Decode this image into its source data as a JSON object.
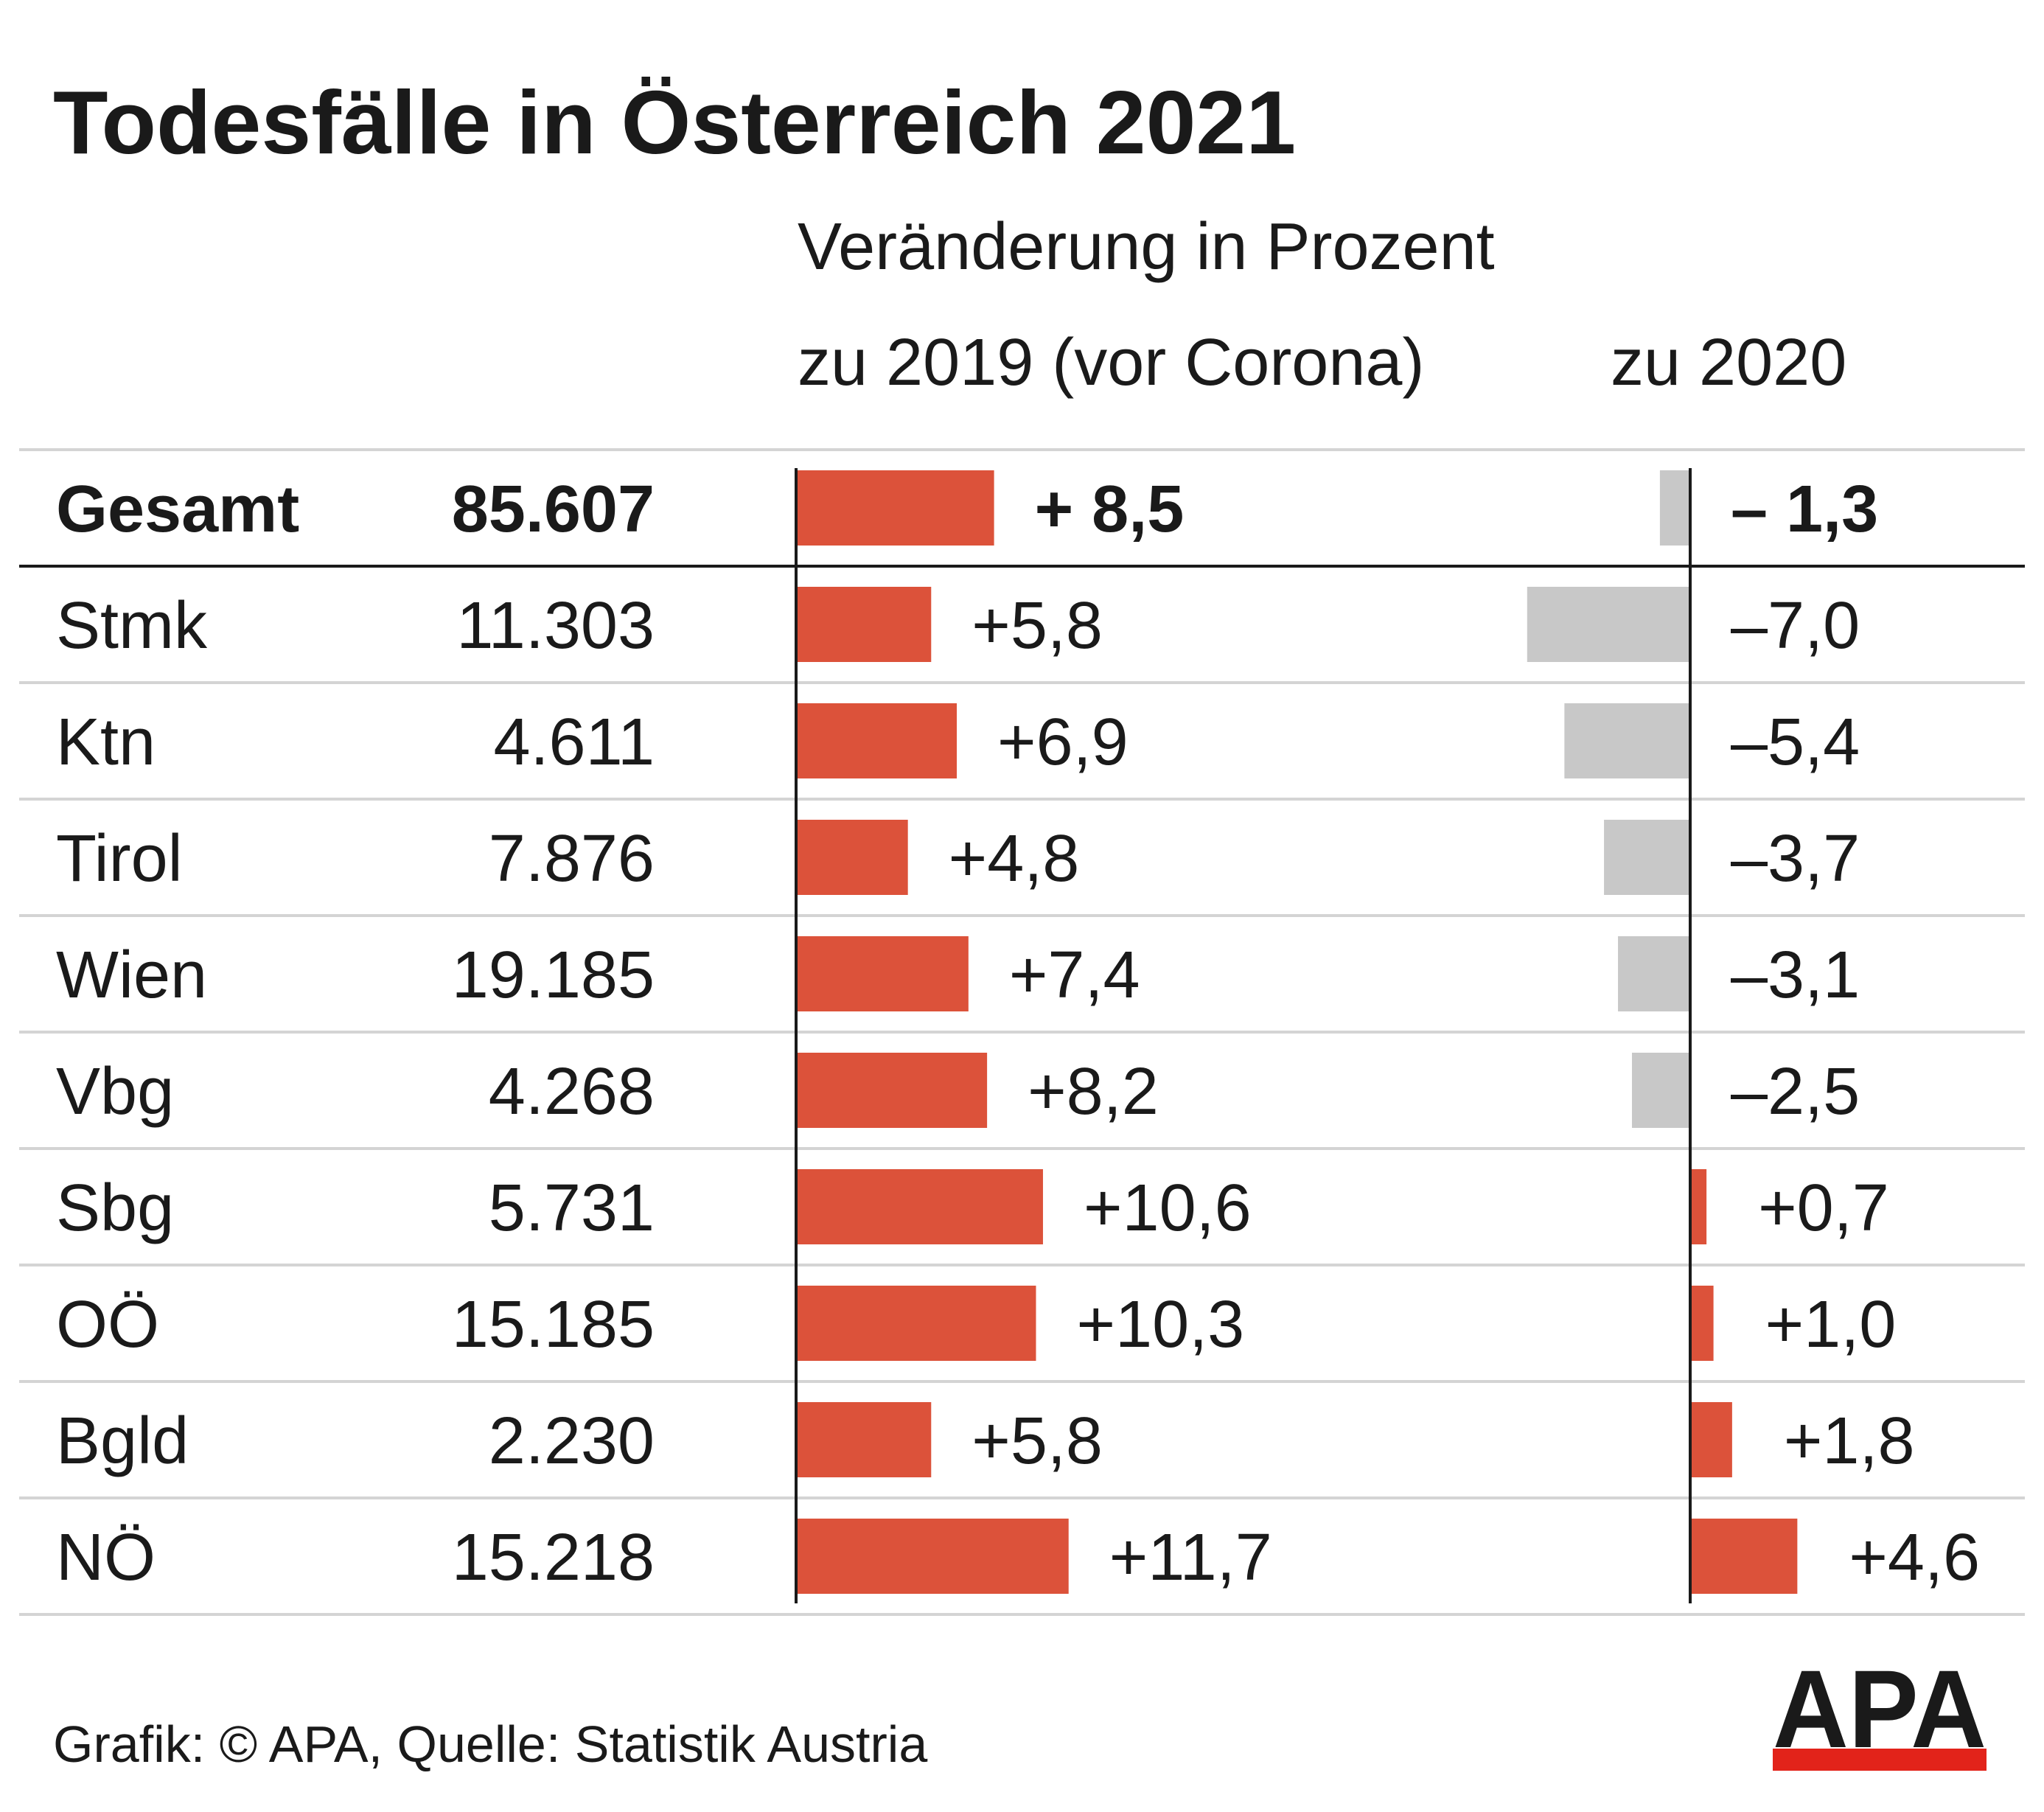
{
  "chart_data": {
    "type": "bar",
    "title": "Todesfälle in Österreich 2021",
    "subtitle": "Veränderung in Prozent",
    "column_headers": {
      "vs_2019": "zu 2019 (vor Corona)",
      "vs_2020": "zu 2020"
    },
    "total": {
      "label": "Gesamt",
      "count_label": "85.607",
      "vs_2019": 8.5,
      "vs_2019_label": "+ 8,5",
      "vs_2020": -1.3,
      "vs_2020_label": "– 1,3"
    },
    "rows": [
      {
        "label": "Stmk",
        "count_label": "11.303",
        "vs_2019": 5.8,
        "vs_2019_label": "+5,8",
        "vs_2020": -7.0,
        "vs_2020_label": "–7,0"
      },
      {
        "label": "Ktn",
        "count_label": "4.611",
        "vs_2019": 6.9,
        "vs_2019_label": "+6,9",
        "vs_2020": -5.4,
        "vs_2020_label": "–5,4"
      },
      {
        "label": "Tirol",
        "count_label": "7.876",
        "vs_2019": 4.8,
        "vs_2019_label": "+4,8",
        "vs_2020": -3.7,
        "vs_2020_label": "–3,7"
      },
      {
        "label": "Wien",
        "count_label": "19.185",
        "vs_2019": 7.4,
        "vs_2019_label": "+7,4",
        "vs_2020": -3.1,
        "vs_2020_label": "–3,1"
      },
      {
        "label": "Vbg",
        "count_label": "4.268",
        "vs_2019": 8.2,
        "vs_2019_label": "+8,2",
        "vs_2020": -2.5,
        "vs_2020_label": "–2,5"
      },
      {
        "label": "Sbg",
        "count_label": "5.731",
        "vs_2019": 10.6,
        "vs_2019_label": "+10,6",
        "vs_2020": 0.7,
        "vs_2020_label": "+0,7"
      },
      {
        "label": "OÖ",
        "count_label": "15.185",
        "vs_2019": 10.3,
        "vs_2019_label": "+10,3",
        "vs_2020": 1.0,
        "vs_2020_label": "+1,0"
      },
      {
        "label": "Bgld",
        "count_label": "2.230",
        "vs_2019": 5.8,
        "vs_2019_label": "+5,8",
        "vs_2020": 1.8,
        "vs_2020_label": "+1,8"
      },
      {
        "label": "NÖ",
        "count_label": "15.218",
        "vs_2019": 11.7,
        "vs_2019_label": "+11,7",
        "vs_2020": 4.6,
        "vs_2020_label": "+4,6"
      }
    ],
    "colors": {
      "positive": "#dc523a",
      "negative": "#c8c8c8",
      "axis": "#1a1a1a",
      "separator": "#d4d4d4"
    },
    "grid": false,
    "legend": "none"
  },
  "footer": {
    "source": "Grafik: © APA, Quelle: Statistik Austria"
  },
  "logo": {
    "text": "APA",
    "accent": "#e2231a"
  }
}
